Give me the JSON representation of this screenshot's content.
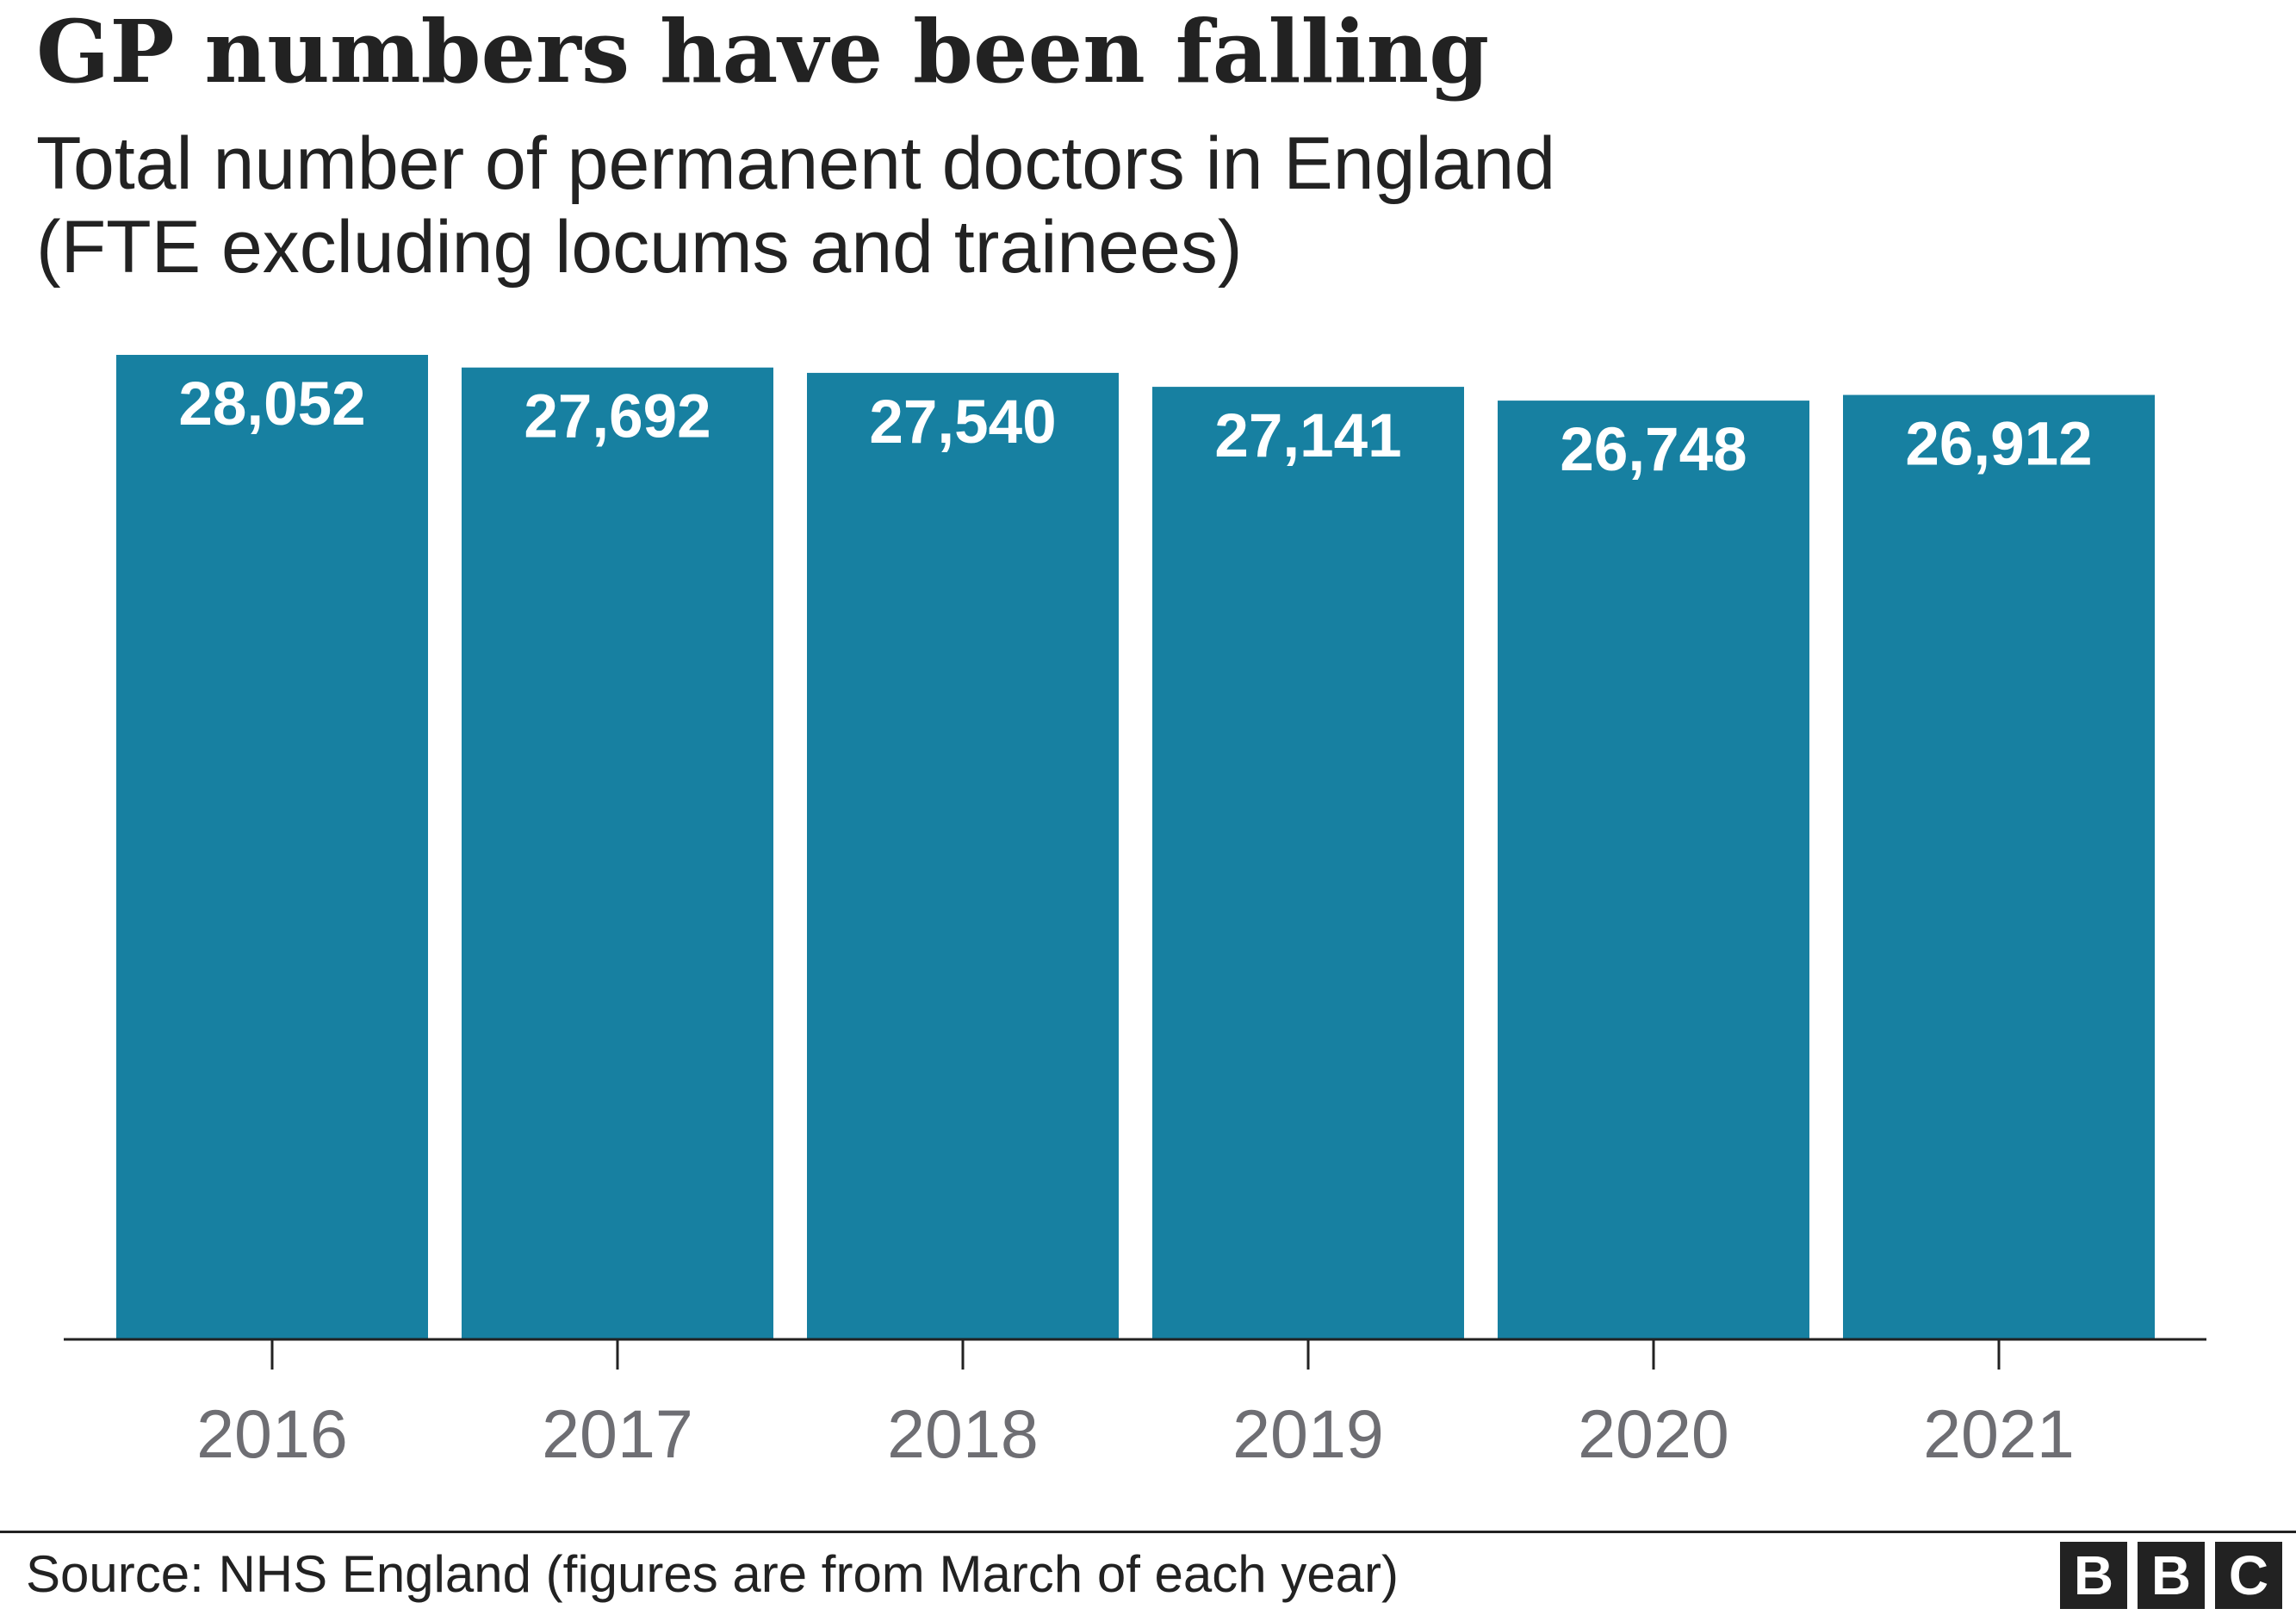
{
  "title": "GP numbers have been falling",
  "subtitle": "Total number of permanent doctors in England\n(FTE excluding locums and trainees)",
  "source": "Source: NHS England (figures are from March of each year)",
  "logo": [
    "B",
    "B",
    "C"
  ],
  "colors": {
    "bar": "#1780a1",
    "text": "#222222",
    "tick_text": "#6e6e73",
    "axis": "#222222"
  },
  "chart_data": {
    "type": "bar",
    "categories": [
      "2016",
      "2017",
      "2018",
      "2019",
      "2020",
      "2021"
    ],
    "values": [
      28052,
      27692,
      27540,
      27141,
      26748,
      26912
    ],
    "value_labels": [
      "28,052",
      "27,692",
      "27,540",
      "27,141",
      "26,748",
      "26,912"
    ],
    "title": "GP numbers have been falling",
    "xlabel": "",
    "ylabel": "",
    "ylim": [
      0,
      28052
    ],
    "grid": false,
    "legend": "none"
  }
}
